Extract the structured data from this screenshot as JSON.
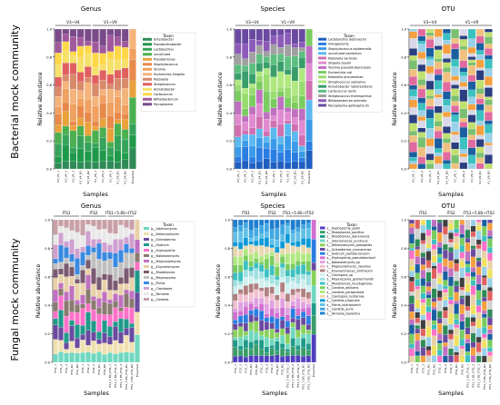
{
  "row_labels": [
    "Bacterial mock community",
    "Fungal mock community"
  ],
  "panel_titles": {
    "top": [
      "Genus",
      "Species",
      "OTU"
    ],
    "bottom": [
      "Genus",
      "Species",
      "OTU"
    ]
  },
  "axis_label_y": "Relative abundance",
  "axis_label_x": "Samples",
  "yticks": [
    "0.0",
    "0.2",
    "0.4",
    "0.6",
    "0.8",
    "1.0"
  ],
  "legend_title": "Taxon",
  "chart_data": [
    {
      "type": "bar",
      "stacked": true,
      "title": "Genus",
      "xlabel": "Samples",
      "ylabel": "Relative abundance",
      "ylim": [
        0,
        1
      ],
      "groups": [
        "V3~V4",
        "V1~V9"
      ],
      "categories": [
        "V3_V4_1",
        "V3_V4_2",
        "V3_V4_3",
        "V3_V4_R1",
        "V3_V4_R2",
        "V1_V9_1",
        "V1_V9_2",
        "V1_V9_3",
        "V1_V9_R1",
        "V1_V9_R2",
        "Expected"
      ],
      "legend": [
        "Enterobacter",
        "Pseudocitrobacter",
        "Lactobacillus",
        "uncultured",
        "Pseudomonas",
        "Staphylococcus",
        "Yersinia",
        "Escherichia-Shigella",
        "Klebsiella",
        "Streptococcus",
        "Acinetobacter",
        "Lactococcus",
        "Bifidobacterium",
        "Mycoplasma"
      ],
      "colors": [
        "#2e8b57",
        "#1f9a4a",
        "#35a35a",
        "#4caf50",
        "#e9a23b",
        "#e8894a",
        "#f0a060",
        "#f4b37a",
        "#d98a6a",
        "#e06060",
        "#f5e06a",
        "#ffd84a",
        "#a05a9c",
        "#7a4a8a"
      ]
    },
    {
      "type": "bar",
      "stacked": true,
      "title": "Species",
      "xlabel": "Samples",
      "ylabel": "Relative abundance",
      "ylim": [
        0,
        1
      ],
      "groups": [
        "V3~V4",
        "V1~V9"
      ],
      "categories": [
        "V3_V4_1",
        "V3_V4_2",
        "V3_V4_3",
        "V3_V4_R1",
        "V3_V4_R2",
        "V1_V9_1",
        "V1_V9_2",
        "V1_V9_3",
        "V1_V9_R1",
        "V1_V9_R2",
        "Expected"
      ],
      "legend": [
        "Lactobacillus delbrueckii",
        "metagenome",
        "Staphylococcus epidermidis",
        "uncultured bacterium",
        "Klebsiella variicola",
        "Shigella boydii",
        "Yersinia pseudotuberculosis",
        "Escherichia coli",
        "Klebsiella pneumoniae",
        "Streptococcus salivarius",
        "Acinetobacter radioresistens",
        "Lactococcus lactis",
        "Streptococcus thermophilus",
        "Bifidobacterium animalis",
        "Mycoplasma gallisepticum"
      ],
      "colors": [
        "#1f5fbf",
        "#2a7de1",
        "#3b9be8",
        "#5bb8f0",
        "#d070b0",
        "#e08ad0",
        "#c070c0",
        "#7acc60",
        "#9adc70",
        "#b0e880",
        "#3a9e6a",
        "#5cbf80",
        "#a0a0a0",
        "#8c5ab8",
        "#6a4aa0"
      ]
    },
    {
      "type": "bar",
      "stacked": true,
      "title": "OTU",
      "xlabel": "Samples",
      "ylabel": "Relative abundance",
      "ylim": [
        0,
        1
      ],
      "groups": [
        "V3~V4",
        "V1~V9"
      ],
      "categories": [
        "V3_V4_1",
        "V3_V4_2",
        "V3_V4_3",
        "V3_V4_R1",
        "V3_V4_R2",
        "V1_V9_1",
        "V1_V9_2",
        "V1_V9_3",
        "V1_V9_R1",
        "V1_V9_R2"
      ],
      "colors": [
        "#f5a040",
        "#9ad0e8",
        "#3cc0c0",
        "#1a5fa0",
        "#e06aa0",
        "#f0c080",
        "#7ac070",
        "#c0e070",
        "#2a3f80",
        "#d8d8e8"
      ]
    },
    {
      "type": "bar",
      "stacked": true,
      "title": "Genus",
      "xlabel": "Samples",
      "ylabel": "Relative abundance",
      "ylim": [
        0,
        1
      ],
      "groups": [
        "ITS1",
        "ITS2",
        "ITS1~5.8S~ITS2"
      ],
      "categories": [
        "ITS1_1",
        "ITS1_2",
        "ITS1_3",
        "ITS1_R1",
        "ITS1_R2",
        "ITS2_1",
        "ITS2_2",
        "ITS2_3",
        "ITS2_R1",
        "ITS2_R2",
        "ITS1_5.8S_ITS2_1",
        "ITS1_5.8S_ITS2_2",
        "ITS1_5.8S_ITS2_3",
        "ITS1_5.8S_ITS2_R1",
        "ITS1_5.8S_ITS2_R2",
        "Expected"
      ],
      "legend": [
        "g__Udeniomyces",
        "g__Debaryomyces",
        "g__Scleroderma",
        "g__Hydnum",
        "g__Hyphopichia",
        "g__Nakaseomyces",
        "g__Magnusiomyces",
        "g__Kluyveromyces",
        "g__Rhodotorula",
        "g__Meyerozyma",
        "g__Pichia",
        "g__Clavispora",
        "g__Yarrowia",
        "g__Candida"
      ],
      "colors": [
        "#6fd8c0",
        "#f0e0b0",
        "#6a4aa0",
        "#1f9a8a",
        "#ff70c8",
        "#8a7a70",
        "#c070c0",
        "#e8d0a8",
        "#7a5a70",
        "#c0c0c0",
        "#3a8ae0",
        "#d0a0d0",
        "#e8e8e8",
        "#c8a0a8"
      ]
    },
    {
      "type": "bar",
      "stacked": true,
      "title": "Species",
      "xlabel": "Samples",
      "ylabel": "Relative abundance",
      "ylim": [
        0,
        1
      ],
      "groups": [
        "ITS1",
        "ITS2",
        "ITS1~5.8S~ITS2"
      ],
      "categories": [
        "ITS1_1",
        "ITS1_2",
        "ITS1_3",
        "ITS1_R1",
        "ITS1_R2",
        "ITS2_1",
        "ITS2_2",
        "ITS2_3",
        "ITS2_R1",
        "ITS2_R2",
        "ITS1_5.8S_ITS2_1",
        "ITS1_5.8S_ITS2_2",
        "ITS1_5.8S_ITS2_3",
        "ITS1_5.8S_ITS2_R1",
        "ITS1_5.8S_ITS2_R2",
        "Expected"
      ],
      "legend": [
        "s__Hyphopichia_gotoi",
        "s__Rhodotorula_pacifica",
        "s__Rhodotorula_dairenensis",
        "s__Udeniomyces_puniceus",
        "s__Debaryomyces_prosopidis",
        "s__Scleroderma_yunnanense",
        "s__Hydnum_pallidocroceum",
        "s__Hyphopichia_pseudoburtonii",
        "s__Nakaseomyces_sp",
        "s__Magnusiomyces_clavatus",
        "s__Kluyveromyces_smithsonii",
        "s__Clavispora_sp",
        "s__Meyerozyma_guilliermondii",
        "s__Rhodotorula_mucilaginosa",
        "s__Candida_albicans",
        "s__Candida_parapsilosis",
        "s__Clavispora_lusitaniae",
        "s__Candida_tropicalis",
        "s__Pichia_kudriavzevii",
        "s__Candida_auris",
        "s__Yarrowia_lipolytica"
      ],
      "colors": [
        "#5040c0",
        "#3a9e6a",
        "#1f9a8a",
        "#6fd8c0",
        "#8ad05a",
        "#6a4aa0",
        "#2a7de1",
        "#d070d0",
        "#e0a0e0",
        "#f0c0d0",
        "#b08080",
        "#d0f0f0",
        "#a0e0e0",
        "#3cc0c0",
        "#7acc60",
        "#b0e880",
        "#e8d8b0",
        "#0a9ad8",
        "#60c0e8",
        "#40a8e0",
        "#1f7fcf"
      ]
    },
    {
      "type": "bar",
      "stacked": true,
      "title": "OTU",
      "xlabel": "Samples",
      "ylabel": "Relative abundance",
      "ylim": [
        0,
        1
      ],
      "groups": [
        "ITS1",
        "ITS2",
        "ITS1~5.8S~ITS2"
      ],
      "categories": [
        "ITS1_1",
        "ITS1_2",
        "ITS1_3",
        "ITS1_R1",
        "ITS1_R2",
        "ITS2_1",
        "ITS2_2",
        "ITS2_3",
        "ITS2_R1",
        "ITS2_R2",
        "ITS1_5.8S_ITS2_1",
        "ITS1_5.8S_ITS2_2",
        "ITS1_5.8S_ITS2_3",
        "ITS1_5.8S_ITS2_R1",
        "ITS1_5.8S_ITS2_R2"
      ],
      "colors": [
        "#e8d0a8",
        "#ff70c8",
        "#3cc0c0",
        "#7acc60",
        "#1a5fa0",
        "#c070c0",
        "#f5a040",
        "#6a4aa0",
        "#2e8b57",
        "#d0d0d0",
        "#e06060",
        "#404040",
        "#9ad0e8",
        "#f0e060"
      ]
    }
  ]
}
